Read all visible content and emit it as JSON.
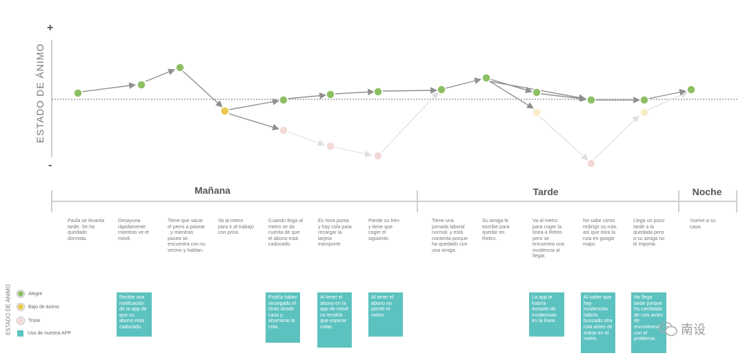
{
  "axis": {
    "title": "ESTADO DE ÁNIMO",
    "plus": "+",
    "minus": "-"
  },
  "periods": [
    "Mañana",
    "Tarde",
    "Noche"
  ],
  "descriptions": [
    "Paula se levanta tarde. Se ha quedado dormida.",
    "Desayuna rápidamente mientras ve el móvil.",
    "Tiene que sacar el perro a pasear , y mientras pasea se encuestra con su vecino y hablan.",
    "Va al metro para ir al trabajo con prisa.",
    "Cuando llega al metro se da cuenta de que el abono está caducado.",
    "Es hora punta y hay cola para recargar la tarjeta transporte.",
    "Pierde su tren y tiene que coger el siguiente.",
    "Tiene una jornada laboral normal, y está contenta porque ha quedado con una amiga.",
    "Su amiga le escribe para quedar en Retiro.",
    "Va al metro para coger la línea a Retiro pero se encuentra una incidencia al llegar.",
    "No sabe cómo redirigir su ruta, así que mira la ruta en google maps.",
    "Llega un poco tarde a la quedada pero a su amiga no le importa.",
    "Vuelve a su casa."
  ],
  "app_notes": [
    "Recibe una notificación de la app de que su abono está caducado.",
    "Podría haber recargado el título desde casa y ahorrarse la cola.",
    "Al tener el abono en la app de móvil no tendría que esperar colas.",
    "Al tener el abono no pierde el metro.",
    "La app le habría avisado de incidencias en la línea.",
    "Al saber que hay incidencias habría buscado otra ruta antes de entrar en el metro.",
    "No llega tarde porque ha cambiado de ruta antes de encontrarse con el problema."
  ],
  "legend": {
    "title": "ESTADO DE ÁNIMO",
    "items": [
      {
        "label": "Alegre",
        "color": "#8cbf62"
      },
      {
        "label": "Bajo de ánimo",
        "color": "#e8c84a"
      },
      {
        "label": "Triste",
        "color": "#f3d9d6"
      },
      {
        "label": "Uso de nuestra APP",
        "color": "#5cc2c0"
      }
    ]
  },
  "colors": {
    "happy": "#8cbf62",
    "low": "#e8c84a",
    "sad": "#f3d9d6",
    "app": "#5cc2c0",
    "line": "#8f8f8f",
    "faint_line": "#e2e2e2"
  },
  "watermark": "南设"
}
